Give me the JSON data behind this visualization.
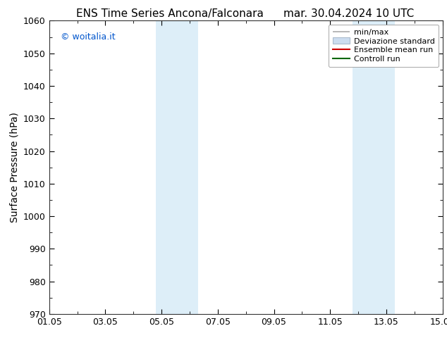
{
  "title_left": "ENS Time Series Ancona/Falconara",
  "title_right": "mar. 30.04.2024 10 UTC",
  "ylabel": "Surface Pressure (hPa)",
  "ylim": [
    970,
    1060
  ],
  "yticks": [
    970,
    980,
    990,
    1000,
    1010,
    1020,
    1030,
    1040,
    1050,
    1060
  ],
  "xtick_labels": [
    "01.05",
    "03.05",
    "05.05",
    "07.05",
    "09.05",
    "11.05",
    "13.05",
    "15.05"
  ],
  "xtick_positions": [
    0,
    2,
    4,
    6,
    8,
    10,
    12,
    14
  ],
  "xlim": [
    0,
    14
  ],
  "shaded_bands": [
    {
      "xmin": 3.8,
      "xmax": 5.3,
      "color": "#ddeef8"
    },
    {
      "xmin": 10.8,
      "xmax": 12.3,
      "color": "#ddeef8"
    }
  ],
  "legend_labels": [
    "min/max",
    "Deviazione standard",
    "Ensemble mean run",
    "Controll run"
  ],
  "legend_line_colors": [
    "#aaaaaa",
    "#bbccdd",
    "#cc0000",
    "#006600"
  ],
  "watermark": "© woitalia.it",
  "watermark_color": "#0055cc",
  "background_color": "#ffffff",
  "plot_bg_color": "#ffffff",
  "title_fontsize": 11,
  "axis_label_fontsize": 10,
  "tick_fontsize": 9,
  "legend_fontsize": 8
}
